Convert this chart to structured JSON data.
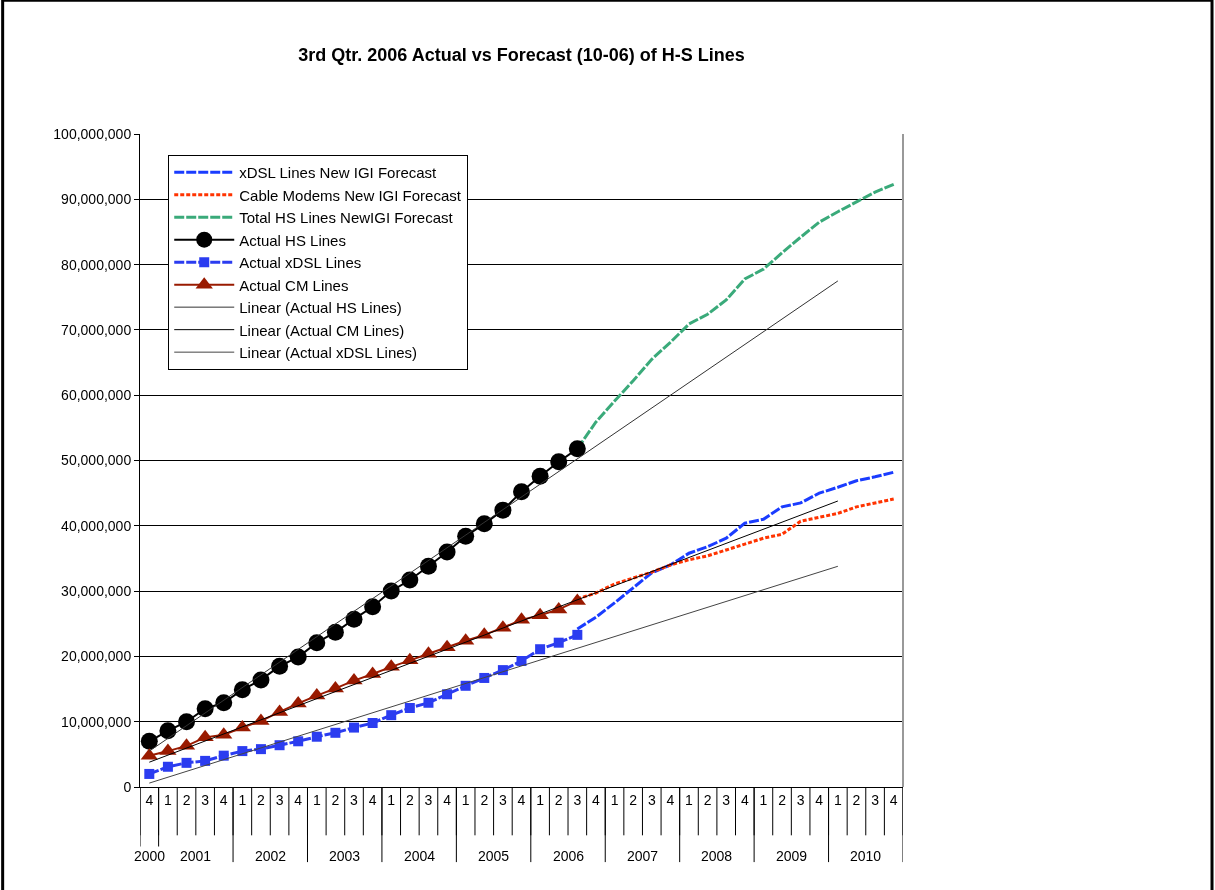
{
  "chart_data": {
    "type": "line",
    "title": "3rd Qtr. 2006 Actual vs Forecast (10-06) of H-S Lines",
    "categories": [
      "4",
      "1",
      "2",
      "3",
      "4",
      "1",
      "2",
      "3",
      "4",
      "1",
      "2",
      "3",
      "4",
      "1",
      "2",
      "3",
      "4",
      "1",
      "2",
      "3",
      "4",
      "1",
      "2",
      "3",
      "4",
      "1",
      "2",
      "3",
      "4",
      "1",
      "2",
      "3",
      "4",
      "1",
      "2",
      "3",
      "4",
      "1",
      "2",
      "3",
      "4"
    ],
    "annotations": [
      "2000",
      "2001",
      "2002",
      "2003",
      "2004",
      "2005",
      "2006",
      "2007",
      "2008",
      "2009",
      "2010"
    ],
    "ylim": [
      0,
      100000000
    ],
    "yticks": [
      {
        "value": 0,
        "label": "0"
      },
      {
        "value": 10000000,
        "label": "10,000,000"
      },
      {
        "value": 20000000,
        "label": "20,000,000"
      },
      {
        "value": 30000000,
        "label": "30,000,000"
      },
      {
        "value": 40000000,
        "label": "40,000,000"
      },
      {
        "value": 50000000,
        "label": "50,000,000"
      },
      {
        "value": 60000000,
        "label": "60,000,000"
      },
      {
        "value": 70000000,
        "label": "70,000,000"
      },
      {
        "value": 80000000,
        "label": "80,000,000"
      },
      {
        "value": 90000000,
        "label": "90,000,000"
      },
      {
        "value": 100000000,
        "label": "100,000,000"
      }
    ],
    "grid": "y",
    "legend": "top left",
    "series": [
      {
        "name": "xDSL Lines New IGI Forecast",
        "color": "#1a3cff",
        "line_style": "dashed",
        "marker": "none",
        "values": [
          null,
          null,
          null,
          null,
          null,
          null,
          null,
          null,
          null,
          null,
          null,
          null,
          null,
          null,
          null,
          null,
          null,
          null,
          null,
          null,
          null,
          null,
          null,
          24200000,
          26000000,
          28200000,
          30500000,
          32800000,
          34000000,
          35800000,
          36800000,
          38100000,
          40400000,
          41000000,
          42900000,
          43500000,
          45000000,
          45900000,
          46900000,
          47500000,
          48200000
        ]
      },
      {
        "name": "Cable Modems New IGI Forecast",
        "color": "#ff3300",
        "line_style": "dotted",
        "marker": "none",
        "values": [
          null,
          null,
          null,
          null,
          null,
          null,
          null,
          null,
          null,
          null,
          null,
          null,
          null,
          null,
          null,
          null,
          null,
          null,
          null,
          null,
          null,
          null,
          null,
          28800000,
          29700000,
          31100000,
          32000000,
          32900000,
          34000000,
          34800000,
          35400000,
          36300000,
          37200000,
          38100000,
          38700000,
          40700000,
          41300000,
          41900000,
          42900000,
          43500000,
          44100000
        ]
      },
      {
        "name": "Total HS Lines NewIGI Forecast",
        "color": "#3aaa7a",
        "line_style": "dashed",
        "marker": "none",
        "values": [
          null,
          null,
          null,
          null,
          null,
          null,
          null,
          null,
          null,
          null,
          null,
          null,
          null,
          null,
          null,
          null,
          null,
          null,
          null,
          null,
          null,
          null,
          null,
          51800000,
          55900000,
          59100000,
          62200000,
          65500000,
          68100000,
          70900000,
          72400000,
          74600000,
          77800000,
          79300000,
          81800000,
          84200000,
          86500000,
          88100000,
          89600000,
          91100000,
          92300000
        ]
      },
      {
        "name": "Actual HS Lines",
        "color": "#000000",
        "line_style": "solid",
        "marker": "circle",
        "values": [
          7000000,
          8600000,
          10000000,
          12000000,
          12900000,
          14900000,
          16400000,
          18500000,
          19900000,
          22100000,
          23700000,
          25700000,
          27600000,
          30000000,
          31700000,
          33800000,
          36000000,
          38400000,
          40300000,
          42400000,
          45200000,
          47600000,
          49800000,
          51800000,
          null,
          null,
          null,
          null,
          null,
          null,
          null,
          null,
          null,
          null,
          null,
          null,
          null,
          null,
          null,
          null,
          null
        ]
      },
      {
        "name": "Actual xDSL Lines",
        "color": "#2b3cf0",
        "line_style": "dashed",
        "marker": "square",
        "values": [
          2000000,
          3100000,
          3700000,
          4000000,
          4800000,
          5500000,
          5800000,
          6400000,
          7000000,
          7700000,
          8300000,
          9100000,
          9800000,
          11000000,
          12100000,
          12900000,
          14200000,
          15500000,
          16700000,
          17900000,
          19300000,
          21100000,
          22100000,
          23300000,
          null,
          null,
          null,
          null,
          null,
          null,
          null,
          null,
          null,
          null,
          null,
          null,
          null,
          null,
          null,
          null,
          null
        ]
      },
      {
        "name": "Actual CM Lines",
        "color": "#991a00",
        "line_style": "solid",
        "marker": "triangle",
        "values": [
          4800000,
          5500000,
          6300000,
          7600000,
          8000000,
          9100000,
          10100000,
          11500000,
          12800000,
          14000000,
          15100000,
          16300000,
          17300000,
          18400000,
          19400000,
          20400000,
          21400000,
          22400000,
          23300000,
          24400000,
          25600000,
          26300000,
          27200000,
          28500000,
          null,
          null,
          null,
          null,
          null,
          null,
          null,
          null,
          null,
          null,
          null,
          null,
          null,
          null,
          null,
          null,
          null
        ]
      },
      {
        "name": "Linear (Actual HS Lines)",
        "color": "#333333",
        "line_style": "solid",
        "marker": "none",
        "values": [
          5500000,
          null,
          null,
          null,
          null,
          null,
          null,
          null,
          null,
          null,
          null,
          null,
          null,
          null,
          null,
          null,
          null,
          null,
          null,
          null,
          null,
          null,
          null,
          null,
          null,
          null,
          null,
          null,
          null,
          null,
          null,
          null,
          null,
          null,
          null,
          null,
          null,
          77500000,
          null,
          null,
          null
        ]
      },
      {
        "name": "Linear (Actual CM Lines)",
        "color": "#000000",
        "line_style": "solid",
        "marker": "none",
        "values": [
          3800000,
          null,
          null,
          null,
          null,
          null,
          null,
          null,
          null,
          null,
          null,
          null,
          null,
          null,
          null,
          null,
          null,
          null,
          null,
          null,
          null,
          null,
          null,
          null,
          null,
          null,
          null,
          null,
          null,
          null,
          null,
          null,
          null,
          null,
          null,
          null,
          null,
          43800000,
          null,
          null,
          null
        ]
      },
      {
        "name": "Linear (Actual xDSL Lines)",
        "color": "#444444",
        "line_style": "solid",
        "marker": "none",
        "values": [
          600000,
          null,
          null,
          null,
          null,
          null,
          null,
          null,
          null,
          null,
          null,
          null,
          null,
          null,
          null,
          null,
          null,
          null,
          null,
          null,
          null,
          null,
          null,
          null,
          null,
          null,
          null,
          null,
          null,
          null,
          null,
          null,
          null,
          null,
          null,
          null,
          null,
          33800000,
          null,
          null,
          null
        ]
      }
    ]
  }
}
